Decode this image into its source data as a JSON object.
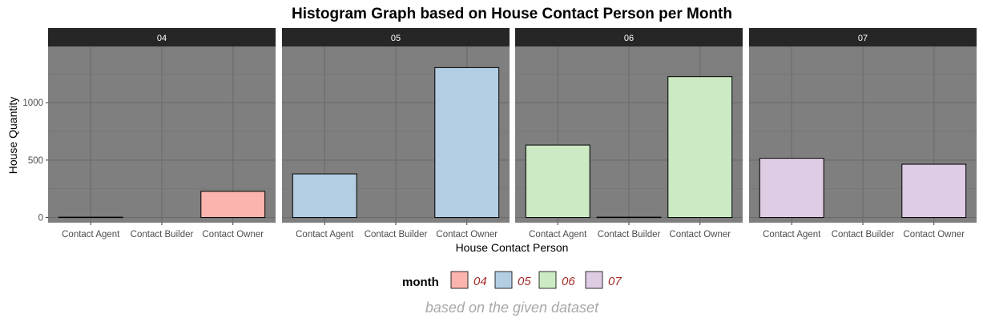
{
  "chart_data": {
    "type": "bar",
    "title": "Histogram Graph based on House Contact Person per Month",
    "xlabel": "House Contact Person",
    "ylabel": "House Quantity",
    "caption": "based on the given dataset",
    "categories": [
      "Contact Agent",
      "Contact Builder",
      "Contact Owner"
    ],
    "ylim": [
      -45,
      1490
    ],
    "yticks": [
      0,
      500,
      1000
    ],
    "grid": true,
    "facet_by": "month",
    "legend": {
      "title": "month",
      "position": "bottom",
      "entries": [
        "04",
        "05",
        "06",
        "07"
      ]
    },
    "series": [
      {
        "name": "04",
        "color": "#FBB4AE",
        "values": [
          3,
          0,
          228
        ]
      },
      {
        "name": "05",
        "color": "#B3CDE3",
        "values": [
          380,
          0,
          1306
        ]
      },
      {
        "name": "06",
        "color": "#CCEBC5",
        "values": [
          631,
          3,
          1227
        ]
      },
      {
        "name": "07",
        "color": "#DECBE4",
        "values": [
          516,
          0,
          464
        ]
      }
    ],
    "colors": {
      "panel_background": "#7f7f7f",
      "strip_background": "#262626",
      "grid_major": "#6b6b6b",
      "grid_minor": "#737373"
    }
  }
}
